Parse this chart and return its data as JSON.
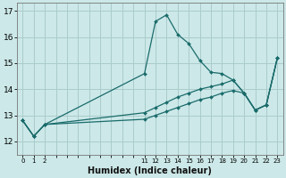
{
  "xlabel": "Humidex (Indice chaleur)",
  "bg_color": "#cce8e8",
  "grid_color": "#aacccc",
  "line_color": "#1a6b6b",
  "ylim": [
    11.5,
    17.3
  ],
  "xlim": [
    -0.5,
    23.5
  ],
  "yticks": [
    12,
    13,
    14,
    15,
    16,
    17
  ],
  "xticks_all": [
    0,
    1,
    2,
    3,
    4,
    5,
    6,
    7,
    8,
    9,
    10,
    11,
    12,
    13,
    14,
    15,
    16,
    17,
    18,
    19,
    20,
    21,
    22,
    23
  ],
  "xtick_show": [
    0,
    1,
    2,
    11,
    12,
    13,
    14,
    15,
    16,
    17,
    18,
    19,
    20,
    21,
    22,
    23
  ],
  "line1_x": [
    0,
    1,
    2,
    11,
    12,
    13,
    14,
    15,
    16,
    17,
    18,
    19,
    20,
    21,
    22,
    23
  ],
  "line1_y": [
    12.8,
    12.2,
    12.65,
    14.6,
    16.6,
    16.85,
    16.1,
    15.75,
    15.1,
    14.65,
    14.6,
    14.35,
    13.85,
    13.2,
    13.4,
    15.2
  ],
  "line2_x": [
    0,
    1,
    2,
    11,
    12,
    13,
    14,
    15,
    16,
    17,
    18,
    19,
    20,
    21,
    22,
    23
  ],
  "line2_y": [
    12.8,
    12.2,
    12.65,
    13.1,
    13.3,
    13.5,
    13.7,
    13.85,
    14.0,
    14.1,
    14.2,
    14.35,
    13.85,
    13.2,
    13.4,
    15.2
  ],
  "line3_x": [
    0,
    1,
    2,
    11,
    12,
    13,
    14,
    15,
    16,
    17,
    18,
    19,
    20,
    21,
    22,
    23
  ],
  "line3_y": [
    12.8,
    12.2,
    12.65,
    12.85,
    13.0,
    13.15,
    13.3,
    13.45,
    13.6,
    13.7,
    13.85,
    13.95,
    13.85,
    13.2,
    13.4,
    15.2
  ],
  "ytick_fontsize": 6.5,
  "xtick_fontsize": 5.0,
  "xlabel_fontsize": 7.0
}
